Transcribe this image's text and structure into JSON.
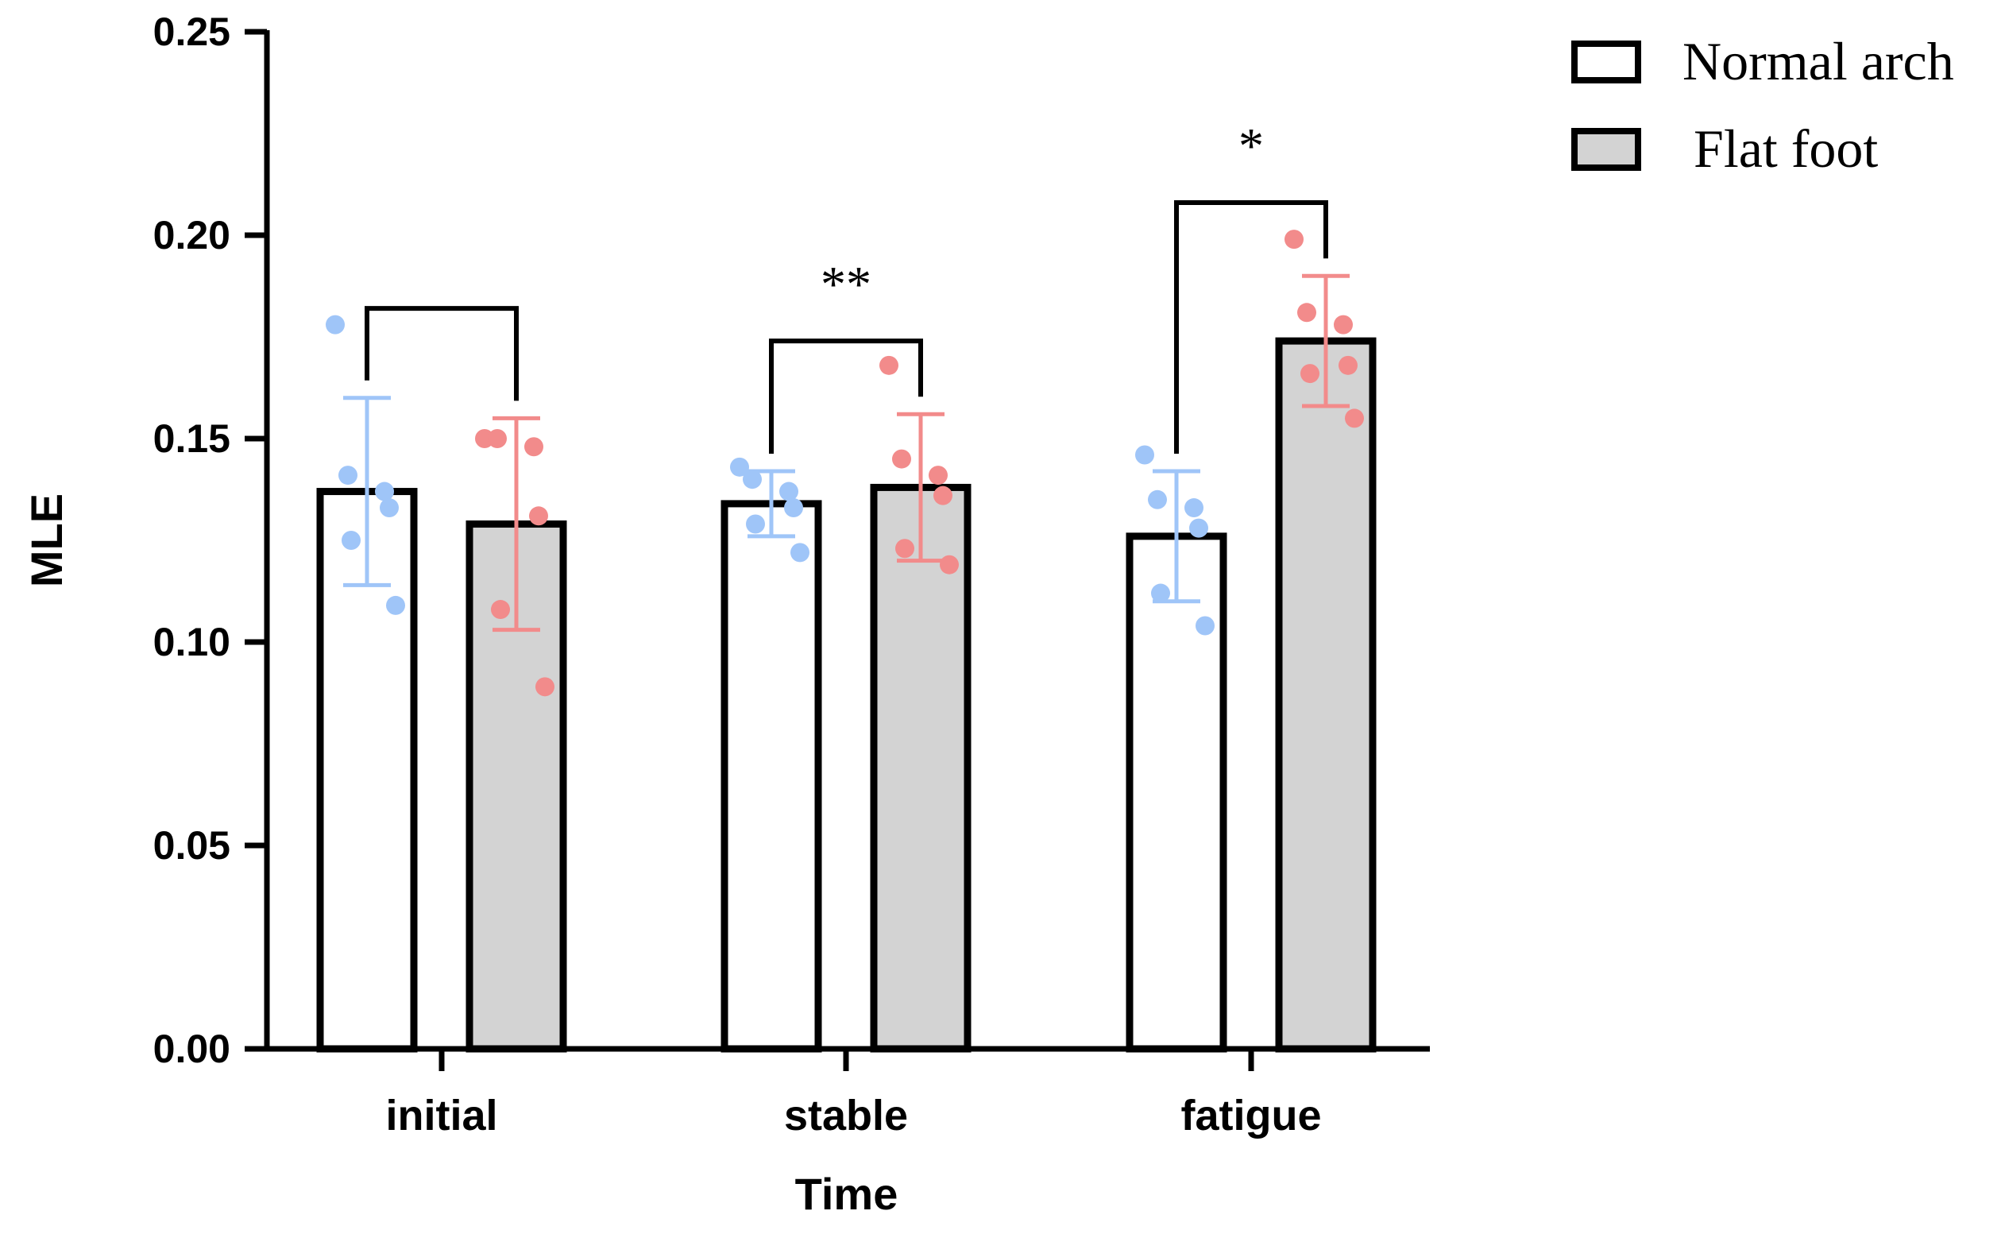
{
  "chart_data": {
    "type": "bar",
    "title": "",
    "xlabel": "Time",
    "ylabel": "MLE",
    "ylim": [
      0,
      0.25
    ],
    "yticks": [
      "0.00",
      "0.05",
      "0.10",
      "0.15",
      "0.20",
      "0.25"
    ],
    "ytick_values": [
      0,
      0.05,
      0.1,
      0.15,
      0.2,
      0.25
    ],
    "categories": [
      "initial",
      "stable",
      "fatigue"
    ],
    "legend_position": "top-right",
    "series": [
      {
        "name": "Normal arch",
        "fill": "#ffffff",
        "point_color": "#9fc5f8",
        "values": [
          0.137,
          0.134,
          0.126
        ],
        "sd": [
          0.023,
          0.008,
          0.016
        ],
        "points": [
          [
            0.178,
            0.141,
            0.137,
            0.133,
            0.125,
            0.109
          ],
          [
            0.143,
            0.14,
            0.137,
            0.133,
            0.129,
            0.122
          ],
          [
            0.146,
            0.135,
            0.133,
            0.128,
            0.112,
            0.104
          ]
        ]
      },
      {
        "name": "Flat foot",
        "fill": "#d3d3d3",
        "point_color": "#f28b8b",
        "values": [
          0.129,
          0.138,
          0.174
        ],
        "sd": [
          0.026,
          0.018,
          0.016
        ],
        "points": [
          [
            0.15,
            0.15,
            0.148,
            0.131,
            0.108,
            0.089
          ],
          [
            0.168,
            0.145,
            0.141,
            0.136,
            0.123,
            0.119
          ],
          [
            0.199,
            0.181,
            0.178,
            0.168,
            0.166,
            0.155
          ]
        ]
      }
    ],
    "significance": [
      {
        "category": "initial",
        "label": ""
      },
      {
        "category": "stable",
        "label": "**"
      },
      {
        "category": "fatigue",
        "label": "*"
      }
    ]
  }
}
